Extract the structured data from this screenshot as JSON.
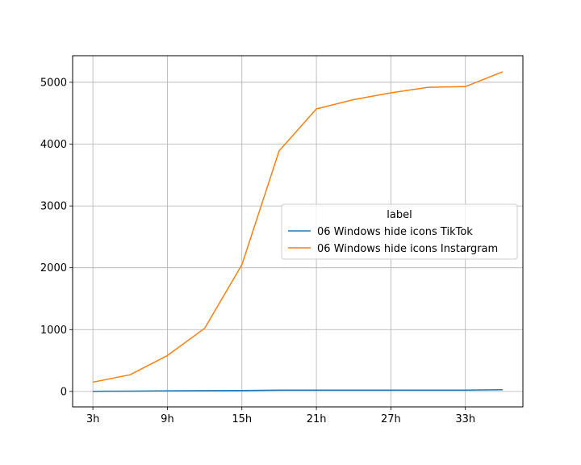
{
  "chart_data": {
    "type": "line",
    "title": "",
    "xlabel": "",
    "ylabel": "",
    "x": [
      "3h",
      "6h",
      "9h",
      "12h",
      "15h",
      "18h",
      "21h",
      "24h",
      "27h",
      "30h",
      "33h",
      "36h"
    ],
    "x_tick_labels": [
      "3h",
      "9h",
      "15h",
      "21h",
      "27h",
      "33h"
    ],
    "y_ticks": [
      0,
      1000,
      2000,
      3000,
      4000,
      5000
    ],
    "ylim": [
      -250,
      5430
    ],
    "grid": true,
    "legend": {
      "title": "label",
      "placement": "center-right"
    },
    "series": [
      {
        "name": "06 Windows hide icons TikTok",
        "color": "#1f77b4",
        "values": [
          2,
          4,
          10,
          12,
          15,
          20,
          22,
          22,
          22,
          22,
          22,
          28
        ]
      },
      {
        "name": "06 Windows hide icons Instargram",
        "color": "#ff7f0e",
        "values": [
          150,
          270,
          580,
          1020,
          2050,
          3890,
          4570,
          4720,
          4830,
          4920,
          4930,
          5170
        ]
      }
    ]
  }
}
